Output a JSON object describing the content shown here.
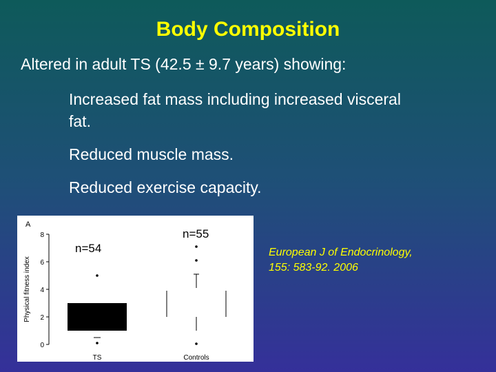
{
  "slide": {
    "title": "Body Composition",
    "intro": "Altered in adult TS (42.5 ± 9.7 years) showing:",
    "bullets": [
      "Increased fat mass including increased visceral fat.",
      "Reduced muscle mass.",
      "Reduced exercise capacity."
    ],
    "citation_line1": "European J of Endocrinology,",
    "citation_line2": "155: 583-92. 2006"
  },
  "chart_data": {
    "type": "box",
    "panel_label": "A",
    "ylabel": "Physical fitness index",
    "ylim": [
      0,
      8
    ],
    "yticks": [
      0,
      2,
      4,
      6,
      8
    ],
    "categories": [
      "TS",
      "Controls"
    ],
    "n_labels": [
      "n=54",
      "n=55"
    ],
    "boxes": [
      {
        "category": "TS",
        "q1": 1.0,
        "q3": 3.0,
        "whisker_low": 0.5,
        "whisker_high": 3.0,
        "outliers": [
          5.0,
          0.1
        ],
        "filled": true
      },
      {
        "category": "Controls",
        "q1": 2.0,
        "q3": 3.9,
        "whisker_low": 1.0,
        "whisker_high": 5.1,
        "outliers": [
          7.1,
          6.1,
          0.05
        ],
        "filled": false
      }
    ]
  }
}
